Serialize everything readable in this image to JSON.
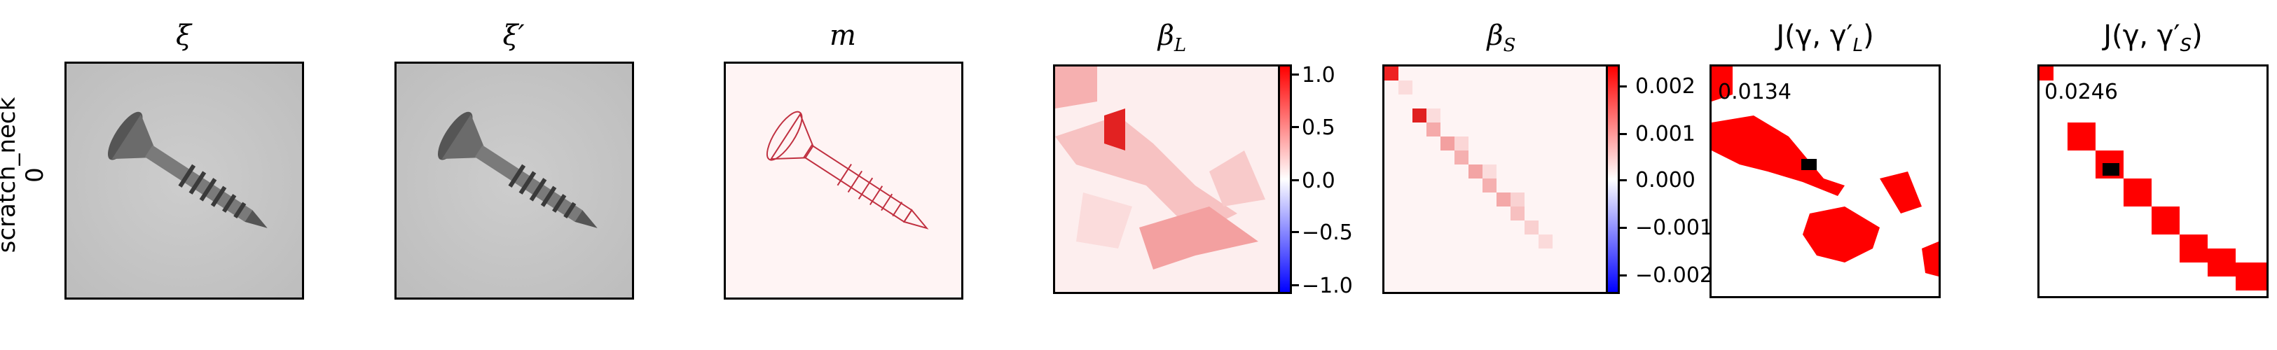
{
  "row_label": {
    "line1": "scratch_neck",
    "line2": "0"
  },
  "panels": {
    "xi": {
      "title": "ξ"
    },
    "xi_prime": {
      "title": "ξ′"
    },
    "m": {
      "title": "m"
    },
    "beta_L": {
      "title": "β",
      "sub": "L",
      "colorbar_ticks": [
        "1.0",
        "0.5",
        "0.0",
        "−0.5",
        "−1.0"
      ]
    },
    "beta_S": {
      "title": "β",
      "sub": "S",
      "colorbar_ticks": [
        "0.002",
        "0.001",
        "0.000",
        "−0.001",
        "−0.002"
      ]
    },
    "J_L": {
      "title_prefix": "J(γ, γ′",
      "sub": "L",
      "title_suffix": ")",
      "score": "0.0134"
    },
    "J_S": {
      "title_prefix": "J(γ, γ′",
      "sub": "S",
      "title_suffix": ")",
      "score": "0.0246"
    }
  },
  "colors": {
    "red": "#ff0000",
    "blue": "#0000ff",
    "black": "#000000"
  }
}
